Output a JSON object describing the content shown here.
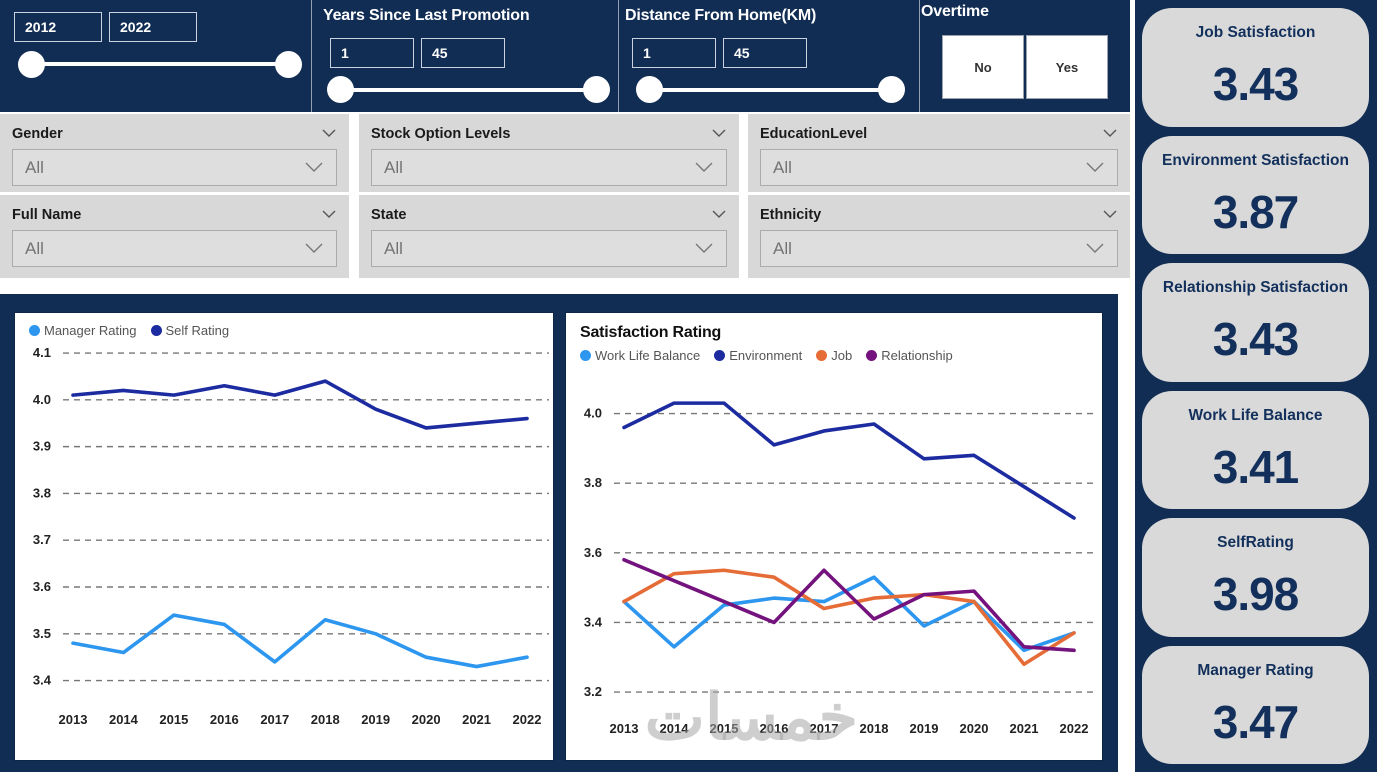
{
  "topbar": {
    "year_slicer": {
      "min": "2012",
      "max": "2022"
    },
    "promotion_slicer": {
      "title": "Years Since Last Promotion",
      "min": "1",
      "max": "45"
    },
    "distance_slicer": {
      "title": "Distance From Home(KM)",
      "min": "1",
      "max": "45"
    },
    "overtime": {
      "title": "Overtime",
      "options": [
        "No",
        "Yes"
      ]
    }
  },
  "filters": [
    {
      "label": "Gender",
      "value": "All"
    },
    {
      "label": "Stock Option Levels",
      "value": "All"
    },
    {
      "label": "EducationLevel",
      "value": "All"
    },
    {
      "label": "Full Name",
      "value": "All"
    },
    {
      "label": "State",
      "value": "All"
    },
    {
      "label": "Ethnicity",
      "value": "All"
    }
  ],
  "kpis": [
    {
      "label": "Job Satisfaction",
      "value": "3.43"
    },
    {
      "label": "Environment Satisfaction",
      "value": "3.87"
    },
    {
      "label": "Relationship Satisfaction",
      "value": "3.43"
    },
    {
      "label": "Work Life Balance",
      "value": "3.41"
    },
    {
      "label": "SelfRating",
      "value": "3.98"
    },
    {
      "label": "Manager Rating",
      "value": "3.47"
    }
  ],
  "colors": {
    "navy_bg": "#112D54",
    "light_blue": "#2D96EF",
    "dark_blue": "#1C2BA0",
    "orange": "#E66C37",
    "purple": "#75137E",
    "card_gray": "#D9D9D9",
    "kpi_text": "#12305B",
    "gridline": "#777777"
  },
  "chart_data": [
    {
      "type": "line",
      "title": "",
      "categories": [
        "2013",
        "2014",
        "2015",
        "2016",
        "2017",
        "2018",
        "2019",
        "2020",
        "2021",
        "2022"
      ],
      "series": [
        {
          "name": "Manager Rating",
          "color_key": "light_blue",
          "values": [
            3.48,
            3.46,
            3.54,
            3.52,
            3.44,
            3.53,
            3.5,
            3.45,
            3.43,
            3.45
          ]
        },
        {
          "name": "Self Rating",
          "color_key": "dark_blue",
          "values": [
            4.01,
            4.02,
            4.01,
            4.03,
            4.01,
            4.04,
            3.98,
            3.94,
            3.95,
            3.96
          ]
        }
      ],
      "yticks": [
        4.1,
        4.0,
        3.9,
        3.8,
        3.7,
        3.6,
        3.5,
        3.4
      ],
      "ylim": [
        3.35,
        4.115
      ],
      "xlabel": "",
      "ylabel": "",
      "legend_position": "top-left",
      "grid": "dashed-horizontal"
    },
    {
      "type": "line",
      "title": "Satisfaction Rating",
      "categories": [
        "2013",
        "2014",
        "2015",
        "2016",
        "2017",
        "2018",
        "2019",
        "2020",
        "2021",
        "2022"
      ],
      "series": [
        {
          "name": "Work Life Balance",
          "color_key": "light_blue",
          "values": [
            3.46,
            3.33,
            3.45,
            3.47,
            3.46,
            3.53,
            3.39,
            3.46,
            3.32,
            3.37
          ]
        },
        {
          "name": "Environment",
          "color_key": "dark_blue",
          "values": [
            3.96,
            4.03,
            4.03,
            3.91,
            3.95,
            3.97,
            3.87,
            3.88,
            3.79,
            3.7
          ]
        },
        {
          "name": "Job",
          "color_key": "orange",
          "values": [
            3.46,
            3.54,
            3.55,
            3.53,
            3.44,
            3.47,
            3.48,
            3.46,
            3.28,
            3.37
          ]
        },
        {
          "name": "Relationship",
          "color_key": "purple",
          "values": [
            3.58,
            3.52,
            3.46,
            3.4,
            3.55,
            3.41,
            3.48,
            3.49,
            3.33,
            3.32
          ]
        }
      ],
      "yticks": [
        4.0,
        3.8,
        3.6,
        3.4,
        3.2
      ],
      "ylim": [
        3.14,
        4.105
      ],
      "xlabel": "",
      "ylabel": "",
      "legend_position": "top-left",
      "grid": "dashed-horizontal"
    }
  ],
  "watermark": {
    "text": "خمسات"
  }
}
